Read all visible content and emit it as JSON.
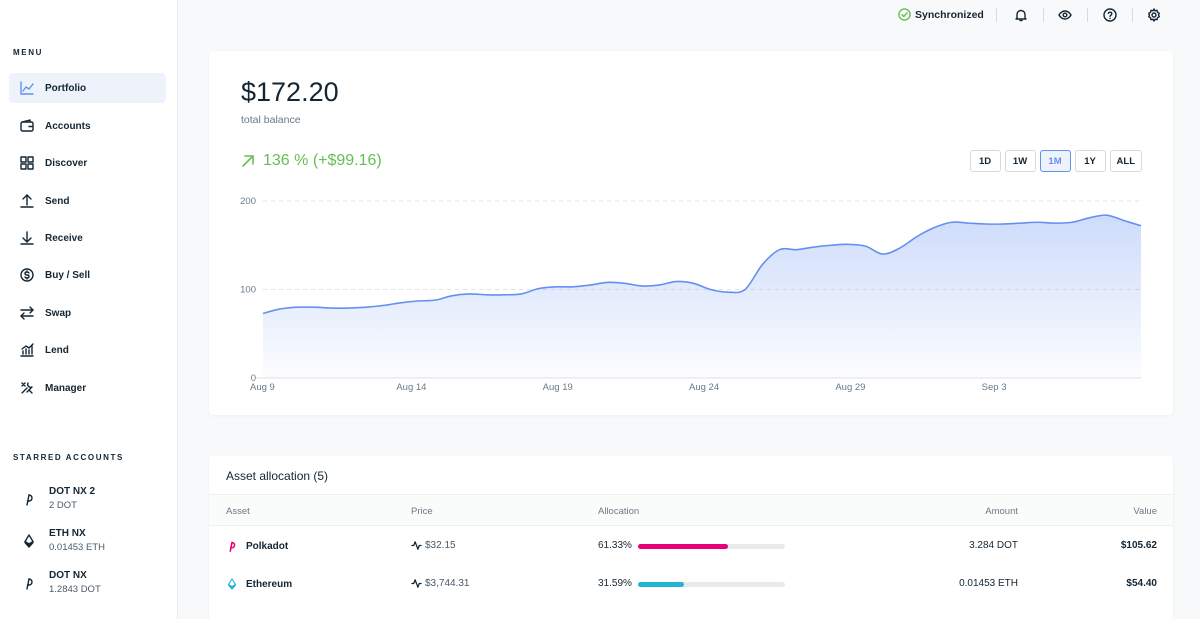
{
  "sidebar": {
    "menu_heading": "MENU",
    "items": [
      {
        "label": "Portfolio",
        "icon": "chart-line-icon",
        "active": true
      },
      {
        "label": "Accounts",
        "icon": "wallet-icon"
      },
      {
        "label": "Discover",
        "icon": "grid-icon"
      },
      {
        "label": "Send",
        "icon": "arrow-up-icon"
      },
      {
        "label": "Receive",
        "icon": "arrow-down-icon"
      },
      {
        "label": "Buy / Sell",
        "icon": "dollar-circle-icon"
      },
      {
        "label": "Swap",
        "icon": "swap-icon"
      },
      {
        "label": "Lend",
        "icon": "lend-chart-icon"
      },
      {
        "label": "Manager",
        "icon": "tools-icon"
      }
    ],
    "starred_heading": "STARRED ACCOUNTS",
    "starred": [
      {
        "name": "DOT NX 2",
        "amount": "2 DOT",
        "icon": "polkadot-icon"
      },
      {
        "name": "ETH NX",
        "amount": "0.01453 ETH",
        "icon": "ethereum-icon"
      },
      {
        "name": "DOT NX",
        "amount": "1.2843 DOT",
        "icon": "polkadot-icon"
      }
    ]
  },
  "topbar": {
    "sync_label": "Synchronized",
    "icons": [
      "bell-icon",
      "eye-icon",
      "help-icon",
      "settings-icon"
    ]
  },
  "balance": {
    "value": "$172.20",
    "label": "total balance",
    "delta": "136 % (+$99.16)",
    "ranges": [
      "1D",
      "1W",
      "1M",
      "1Y",
      "ALL"
    ],
    "active_range": "1M"
  },
  "chart_data": {
    "type": "area",
    "x_labels": [
      "Aug 9",
      "Aug 14",
      "Aug 19",
      "Aug 24",
      "Aug 29",
      "Sep 3"
    ],
    "y_ticks": [
      0,
      100,
      200
    ],
    "ylim": [
      0,
      200
    ],
    "grid": true,
    "values": [
      73,
      78,
      80,
      80,
      79,
      79,
      80,
      82,
      85,
      87,
      88,
      93,
      95,
      94,
      94,
      95,
      101,
      103,
      103,
      105,
      108,
      107,
      104,
      105,
      109,
      107,
      100,
      97,
      100,
      128,
      145,
      145,
      148,
      150,
      151,
      149,
      140,
      147,
      160,
      170,
      176,
      175,
      174,
      174,
      175,
      176,
      175,
      176,
      181,
      184,
      178,
      172
    ]
  },
  "colors": {
    "accent": "#6490f1",
    "positive": "#66be54",
    "polkadot": "#e6007a",
    "ethereum": "#23b4d2"
  },
  "allocation": {
    "title": "Asset allocation (5)",
    "headers": {
      "asset": "Asset",
      "price": "Price",
      "allocation": "Allocation",
      "amount": "Amount",
      "value": "Value"
    },
    "rows": [
      {
        "asset": "Polkadot",
        "icon": "polkadot-icon",
        "price": "$32.15",
        "allocation": "61.33%",
        "fraction": 0.6133,
        "color": "#e6007a",
        "amount": "3.284 DOT",
        "value": "$105.62"
      },
      {
        "asset": "Ethereum",
        "icon": "ethereum-icon",
        "price": "$3,744.31",
        "allocation": "31.59%",
        "fraction": 0.3159,
        "color": "#23b4d2",
        "amount": "0.01453 ETH",
        "value": "$54.40"
      }
    ]
  }
}
